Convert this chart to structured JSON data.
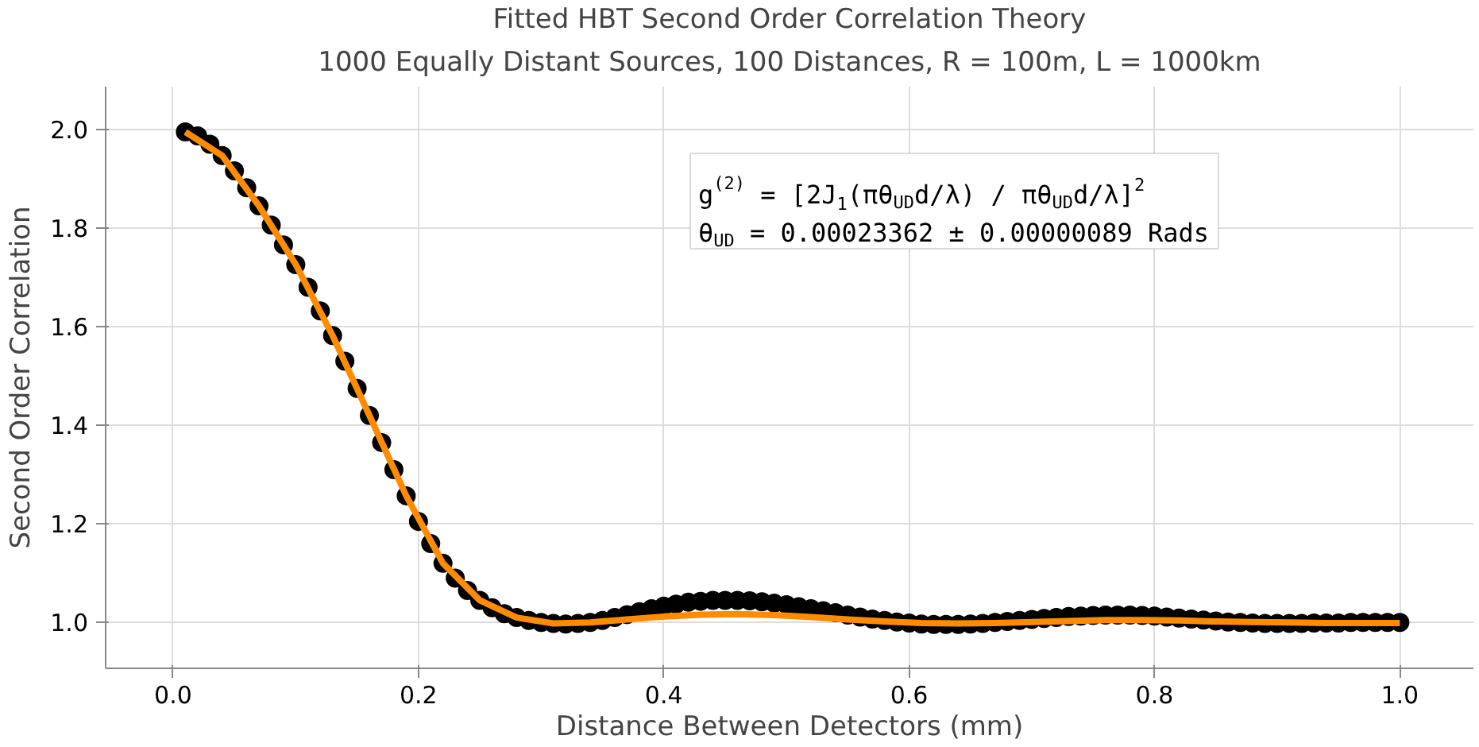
{
  "chart_data": {
    "type": "scatter",
    "title": "Fitted HBT Second Order Correlation Theory",
    "subtitle": "1000 Equally Distant Sources, 100 Distances, R = 100m, L = 1000km",
    "xlabel": "Distance Between Detectors (mm)",
    "ylabel": "Second Order Correlation",
    "xlim": [
      -0.055,
      1.06
    ],
    "ylim": [
      0.907,
      2.087
    ],
    "xticks": [
      {
        "value": 0,
        "label": "0.0"
      },
      0.2,
      0.4,
      0.6,
      0.8,
      {
        "value": 1,
        "label": "1.0"
      }
    ],
    "yticks": [
      {
        "value": 1,
        "label": "1.0"
      },
      1.2,
      1.4,
      1.6,
      1.8,
      {
        "value": 2,
        "label": "2.0"
      }
    ],
    "grid": true,
    "annotations": [
      "g$^{(2)}$ = [2J$_{1}$(πθ$_{UD}$d/λ) / πθ$_{UD}$d/λ]$^{2}$",
      "θ$_{UD}$ = 0.00023362 ± 0.00000089 Rads"
    ],
    "series": [
      {
        "marker": "circle",
        "color": "#000000",
        "x": [
          0.01,
          0.02,
          0.03,
          0.04,
          0.05,
          0.06,
          0.07,
          0.08,
          0.09,
          0.1,
          0.11,
          0.12,
          0.13,
          0.14,
          0.15,
          0.16,
          0.17,
          0.18,
          0.19,
          0.2,
          0.21,
          0.22,
          0.23,
          0.24,
          0.25,
          0.26,
          0.27,
          0.28,
          0.29,
          0.3,
          0.31,
          0.32,
          0.33,
          0.34,
          0.35,
          0.36,
          0.37,
          0.38,
          0.39,
          0.4,
          0.41,
          0.42,
          0.43,
          0.44,
          0.45,
          0.46,
          0.47,
          0.48,
          0.49,
          0.5,
          0.51,
          0.52,
          0.53,
          0.54,
          0.55,
          0.56,
          0.57,
          0.58,
          0.59,
          0.6,
          0.61,
          0.62,
          0.63,
          0.64,
          0.65,
          0.66,
          0.67,
          0.68,
          0.69,
          0.7,
          0.71,
          0.72,
          0.73,
          0.74,
          0.75,
          0.76,
          0.77,
          0.78,
          0.79,
          0.8,
          0.81,
          0.82,
          0.83,
          0.84,
          0.85,
          0.86,
          0.87,
          0.88,
          0.89,
          0.9,
          0.91,
          0.92,
          0.93,
          0.94,
          0.95,
          0.96,
          0.97,
          0.98,
          0.99,
          1.0
        ],
        "values": [
          1.995,
          1.987,
          1.97,
          1.947,
          1.916,
          1.882,
          1.845,
          1.806,
          1.766,
          1.726,
          1.68,
          1.632,
          1.582,
          1.53,
          1.475,
          1.42,
          1.365,
          1.31,
          1.257,
          1.205,
          1.16,
          1.12,
          1.09,
          1.065,
          1.045,
          1.03,
          1.018,
          1.01,
          1.004,
          1.0,
          0.998,
          0.997,
          0.998,
          1.0,
          1.004,
          1.01,
          1.016,
          1.022,
          1.028,
          1.033,
          1.037,
          1.041,
          1.043,
          1.045,
          1.045,
          1.045,
          1.044,
          1.042,
          1.039,
          1.036,
          1.032,
          1.028,
          1.024,
          1.02,
          1.015,
          1.011,
          1.007,
          1.004,
          1.001,
          0.999,
          0.997,
          0.996,
          0.996,
          0.996,
          0.997,
          0.998,
          1.0,
          1.002,
          1.004,
          1.006,
          1.008,
          1.01,
          1.012,
          1.013,
          1.014,
          1.015,
          1.015,
          1.015,
          1.014,
          1.013,
          1.011,
          1.009,
          1.007,
          1.005,
          1.003,
          1.001,
          1.0,
          0.999,
          0.998,
          0.998,
          0.998,
          0.998,
          0.999,
          0.999,
          0.999,
          1.0,
          1.0,
          1.0,
          1.0,
          1.0
        ]
      },
      {
        "type": "line",
        "color": "#ff8c00",
        "x": [
          0.01,
          0.04,
          0.07,
          0.1,
          0.13,
          0.16,
          0.19,
          0.22,
          0.25,
          0.28,
          0.31,
          0.34,
          0.37,
          0.4,
          0.43,
          0.46,
          0.49,
          0.52,
          0.55,
          0.58,
          0.61,
          0.64,
          0.67,
          0.7,
          0.73,
          0.76,
          0.79,
          0.82,
          0.85,
          0.88,
          0.91,
          0.94,
          0.97,
          1.0
        ],
        "values": [
          1.995,
          1.947,
          1.845,
          1.726,
          1.582,
          1.42,
          1.257,
          1.12,
          1.045,
          1.01,
          0.998,
          1.0,
          1.006,
          1.012,
          1.016,
          1.017,
          1.015,
          1.011,
          1.006,
          1.002,
          0.999,
          0.998,
          0.999,
          1.001,
          1.003,
          1.005,
          1.005,
          1.004,
          1.002,
          1.001,
          1.0,
          0.999,
          0.999,
          0.999
        ]
      }
    ]
  }
}
